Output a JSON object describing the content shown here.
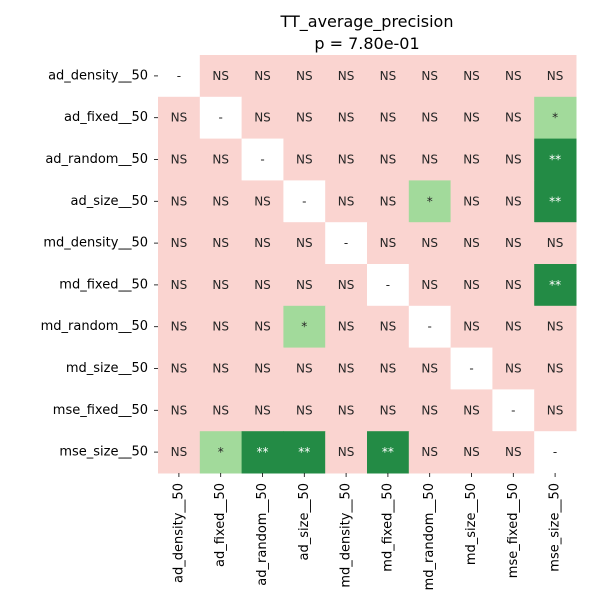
{
  "chart_data": {
    "type": "heatmap",
    "title": "TT_average_precision",
    "subtitle": "p = 7.80e-01",
    "row_labels": [
      "ad_density__50",
      "ad_fixed__50",
      "ad_random__50",
      "ad_size__50",
      "md_density__50",
      "md_fixed__50",
      "md_random__50",
      "md_size__50",
      "mse_fixed__50",
      "mse_size__50"
    ],
    "col_labels": [
      "ad_density__50",
      "ad_fixed__50",
      "ad_random__50",
      "ad_size__50",
      "md_density__50",
      "md_fixed__50",
      "md_random__50",
      "md_size__50",
      "mse_fixed__50",
      "mse_size__50"
    ],
    "cells": [
      [
        "-",
        "NS",
        "NS",
        "NS",
        "NS",
        "NS",
        "NS",
        "NS",
        "NS",
        "NS"
      ],
      [
        "NS",
        "-",
        "NS",
        "NS",
        "NS",
        "NS",
        "NS",
        "NS",
        "NS",
        "*"
      ],
      [
        "NS",
        "NS",
        "-",
        "NS",
        "NS",
        "NS",
        "NS",
        "NS",
        "NS",
        "**"
      ],
      [
        "NS",
        "NS",
        "NS",
        "-",
        "NS",
        "NS",
        "*",
        "NS",
        "NS",
        "**"
      ],
      [
        "NS",
        "NS",
        "NS",
        "NS",
        "-",
        "NS",
        "NS",
        "NS",
        "NS",
        "NS"
      ],
      [
        "NS",
        "NS",
        "NS",
        "NS",
        "NS",
        "-",
        "NS",
        "NS",
        "NS",
        "**"
      ],
      [
        "NS",
        "NS",
        "NS",
        "*",
        "NS",
        "NS",
        "-",
        "NS",
        "NS",
        "NS"
      ],
      [
        "NS",
        "NS",
        "NS",
        "NS",
        "NS",
        "NS",
        "NS",
        "-",
        "NS",
        "NS"
      ],
      [
        "NS",
        "NS",
        "NS",
        "NS",
        "NS",
        "NS",
        "NS",
        "NS",
        "-",
        "NS"
      ],
      [
        "NS",
        "*",
        "**",
        "**",
        "NS",
        "**",
        "NS",
        "NS",
        "NS",
        "-"
      ]
    ],
    "colors": {
      "NS": "#fad4d0",
      "*": "#a2da9b",
      "**": "#238b45",
      "-": "#ffffff"
    },
    "text_colors": {
      "NS": "#262626",
      "*": "#262626",
      "**": "#ffffff",
      "-": "#262626"
    },
    "grid": false,
    "legend": "none"
  }
}
